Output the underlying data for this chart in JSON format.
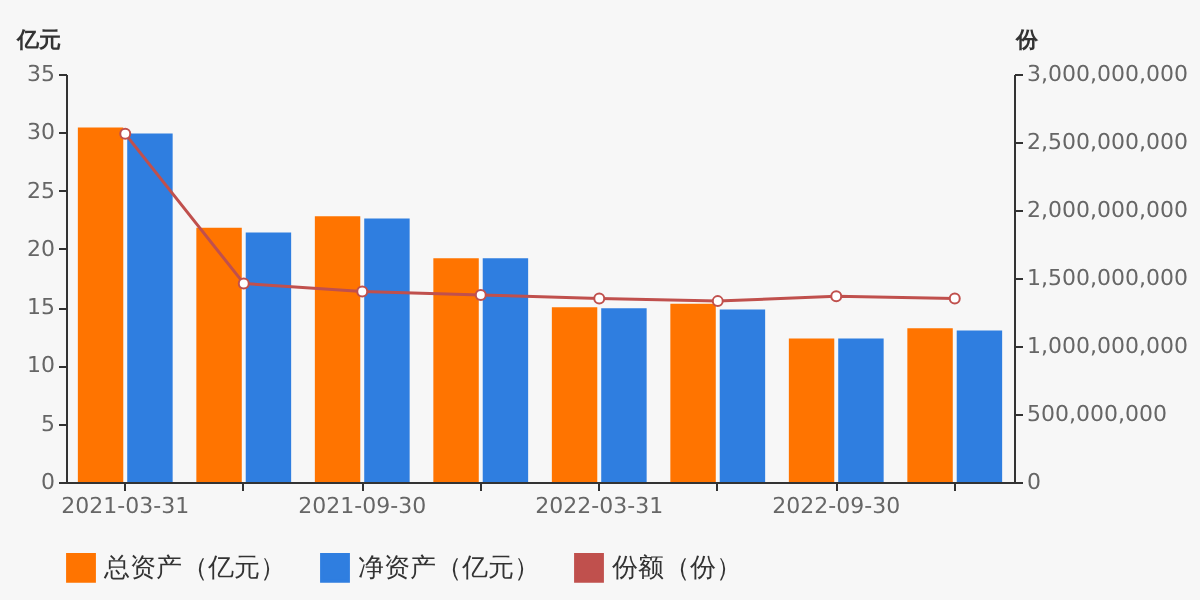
{
  "chart_data": {
    "type": "bar",
    "categories": [
      "2021-03-31",
      null,
      "2021-09-30",
      null,
      "2022-03-31",
      null,
      "2022-09-30",
      null
    ],
    "ylabel": "亿元",
    "y2label": "份",
    "series": [
      {
        "name": "总资产（亿元）",
        "color": "#ff7400",
        "values": [
          30.4,
          21.8,
          22.8,
          19.2,
          15.0,
          15.3,
          12.3,
          13.2
        ]
      },
      {
        "name": "净资产（亿元）",
        "color": "#2f7ee0",
        "values": [
          29.9,
          21.4,
          22.6,
          19.2,
          14.9,
          14.8,
          12.3,
          13.0
        ]
      },
      {
        "name": "份额（份）",
        "type": "line",
        "axis": "y2",
        "color": "#c0504d",
        "marker": "circle",
        "values": [
          2560000000,
          1460000000,
          1400000000,
          1375000000,
          1350000000,
          1330000000,
          1365000000,
          1350000000
        ]
      }
    ],
    "ylim": [
      0,
      35
    ],
    "yticks": [
      0,
      5,
      10,
      15,
      20,
      25,
      30,
      35
    ],
    "y2lim": [
      0,
      3000000000
    ],
    "y2ticks": [
      {
        "value": 0,
        "label": "0"
      },
      {
        "value": 500000000,
        "label": "500,000,000"
      },
      {
        "value": 1000000000,
        "label": "1,000,000,000"
      },
      {
        "value": 1500000000,
        "label": "1,500,000,000"
      },
      {
        "value": 2000000000,
        "label": "2,000,000,000"
      },
      {
        "value": 2500000000,
        "label": "2,500,000,000"
      },
      {
        "value": 3000000000,
        "label": "3,000,000,000"
      }
    ],
    "grid": false,
    "legend": "bottom"
  }
}
